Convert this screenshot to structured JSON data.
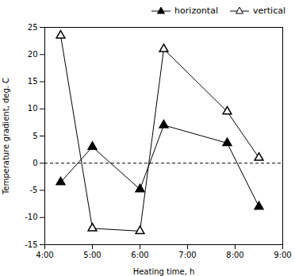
{
  "chart_data": {
    "type": "line",
    "x_label": "Heating time, h",
    "y_label": "Temperature gradient, deg. C",
    "x": [
      4.333,
      5.0,
      6.0,
      6.5,
      7.833,
      8.5
    ],
    "series": [
      {
        "name": "horizontal",
        "color": "#000000",
        "marker": "triangle",
        "values": [
          -3.5,
          3.0,
          -4.8,
          7.0,
          3.7,
          -8.0
        ]
      },
      {
        "name": "vertical",
        "color": "#000000",
        "marker": "open-triangle",
        "values": [
          23.5,
          -12.0,
          -12.5,
          21.0,
          9.5,
          1.0
        ]
      }
    ],
    "xlim": [
      4.0,
      9.0
    ],
    "ylim": [
      -15,
      25
    ],
    "xticks": [
      {
        "value": 4.0,
        "label": "4:00"
      },
      {
        "value": 5.0,
        "label": "5:00"
      },
      {
        "value": 6.0,
        "label": "6:00"
      },
      {
        "value": 7.0,
        "label": "7:00"
      },
      {
        "value": 8.0,
        "label": "8:00"
      },
      {
        "value": 9.0,
        "label": "9:00"
      }
    ],
    "yticks": [
      -15,
      -10,
      -5,
      0,
      5,
      10,
      15,
      20,
      25
    ],
    "grid": false,
    "legend": "upper right"
  }
}
